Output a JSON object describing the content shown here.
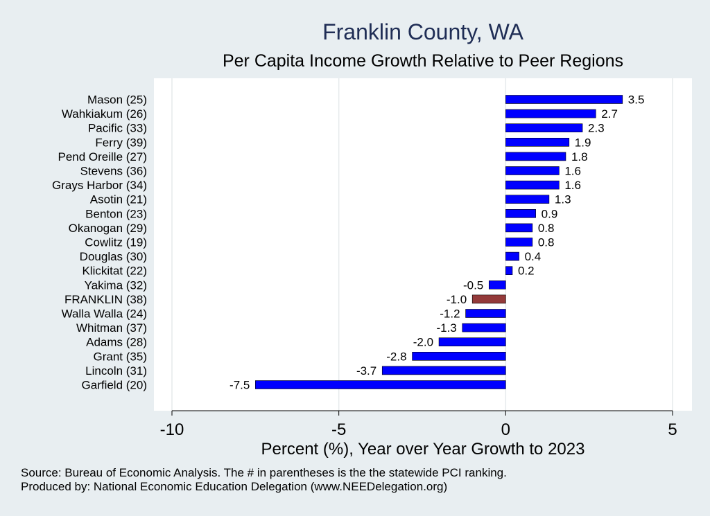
{
  "chart_data": {
    "type": "bar",
    "orientation": "horizontal",
    "title": "Franklin County, WA",
    "subtitle": "Per Capita Income Growth Relative to Peer Regions",
    "xlabel": "Percent (%), Year over Year Growth to 2023",
    "ylabel": "",
    "xlim": [
      -10,
      5
    ],
    "xticks": [
      -10,
      -5,
      0,
      5
    ],
    "xtick_labels": [
      "-10",
      "-5",
      "0",
      "5"
    ],
    "grid": true,
    "categories": [
      "Mason (25)",
      "Wahkiakum (26)",
      "Pacific (33)",
      "Ferry (39)",
      "Pend Oreille (27)",
      "Stevens (36)",
      "Grays Harbor (34)",
      "Asotin (21)",
      "Benton (23)",
      "Okanogan (29)",
      "Cowlitz (19)",
      "Douglas (30)",
      "Klickitat (22)",
      "Yakima (32)",
      "FRANKLIN (38)",
      "Walla Walla (24)",
      "Whitman (37)",
      "Adams (28)",
      "Grant (35)",
      "Lincoln (31)",
      "Garfield (20)"
    ],
    "values": [
      3.5,
      2.7,
      2.3,
      1.9,
      1.8,
      1.6,
      1.6,
      1.3,
      0.9,
      0.8,
      0.8,
      0.4,
      0.2,
      -0.5,
      -1.0,
      -1.2,
      -1.3,
      -2.0,
      -2.8,
      -3.7,
      -7.5
    ],
    "value_labels": [
      "3.5",
      "2.7",
      "2.3",
      "1.9",
      "1.8",
      "1.6",
      "1.6",
      "1.3",
      "0.9",
      "0.8",
      "0.8",
      "0.4",
      "0.2",
      "-0.5",
      "-1.0",
      "-1.2",
      "-1.3",
      "-2.0",
      "-2.8",
      "-3.7",
      "-7.5"
    ],
    "highlight_category": "FRANKLIN (38)",
    "colors": {
      "bar": "#0000ff",
      "highlight": "#943a3a",
      "bar_edge": "#000000",
      "plot_background": "#ffffff",
      "page_background": "#e8eef1",
      "gridline": "#e6eaec",
      "title": "#1f2d55"
    }
  },
  "footer": {
    "source": "Source: Bureau of Economic Analysis. The # in parentheses is the the statewide PCI ranking.",
    "producer": "Produced by: National Economic Education Delegation (www.NEEDelegation.org)"
  }
}
